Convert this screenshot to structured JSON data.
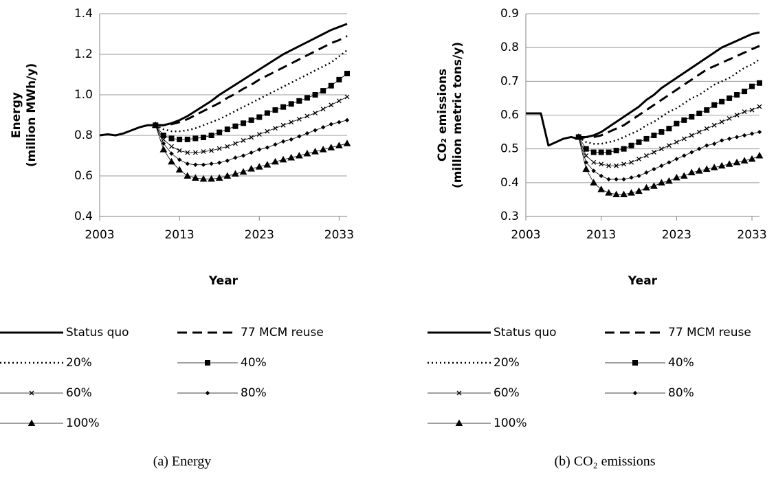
{
  "chart_data": [
    {
      "type": "line",
      "caption": "(a) Energy",
      "y_label": [
        "Energy",
        "(million MWh/y)"
      ],
      "x_label": "Year",
      "xlim": [
        2003,
        2034
      ],
      "xticks": [
        2003,
        2013,
        2023,
        2033
      ],
      "ylim": [
        0.4,
        1.4
      ],
      "yticks": [
        0.4,
        0.6,
        0.8,
        {
          "value": 1.0,
          "label": "1.0"
        },
        1.2,
        1.4
      ],
      "grid": true,
      "legend": "bottom",
      "x": [
        2003,
        2004,
        2005,
        2006,
        2007,
        2008,
        2009,
        2010,
        2011,
        2012,
        2013,
        2014,
        2015,
        2016,
        2017,
        2018,
        2019,
        2020,
        2021,
        2022,
        2023,
        2024,
        2025,
        2026,
        2027,
        2028,
        2029,
        2030,
        2031,
        2032,
        2033,
        2034
      ],
      "series": [
        {
          "name": "Status quo",
          "color": "#000000",
          "line_style": "solid",
          "marker": "none",
          "values": [
            0.8,
            0.805,
            0.8,
            0.81,
            0.825,
            0.84,
            0.85,
            0.85,
            0.85,
            0.86,
            0.875,
            0.895,
            0.92,
            0.945,
            0.97,
            1.0,
            1.025,
            1.05,
            1.075,
            1.1,
            1.125,
            1.15,
            1.175,
            1.2,
            1.22,
            1.24,
            1.26,
            1.28,
            1.3,
            1.32,
            1.335,
            1.35
          ]
        },
        {
          "name": "77 MCM reuse",
          "color": "#000000",
          "line_style": "dashed",
          "marker": "none",
          "values": [
            null,
            null,
            null,
            null,
            null,
            null,
            null,
            0.85,
            0.85,
            0.855,
            0.865,
            0.88,
            0.9,
            0.92,
            0.94,
            0.96,
            0.985,
            1.005,
            1.03,
            1.05,
            1.075,
            1.095,
            1.115,
            1.135,
            1.155,
            1.175,
            1.195,
            1.215,
            1.235,
            1.255,
            1.27,
            1.29
          ]
        },
        {
          "name": "20%",
          "color": "#000000",
          "line_style": "dotted",
          "marker": "none",
          "values": [
            null,
            null,
            null,
            null,
            null,
            null,
            null,
            0.85,
            0.83,
            0.82,
            0.82,
            0.825,
            0.835,
            0.85,
            0.865,
            0.88,
            0.9,
            0.92,
            0.94,
            0.96,
            0.98,
            1.0,
            1.02,
            1.04,
            1.06,
            1.08,
            1.1,
            1.12,
            1.14,
            1.16,
            1.19,
            1.22
          ]
        },
        {
          "name": "40%",
          "color": "#000000",
          "line_style": "thin",
          "marker": "square",
          "values": [
            null,
            null,
            null,
            null,
            null,
            null,
            null,
            0.85,
            0.8,
            0.785,
            0.78,
            0.78,
            0.785,
            0.79,
            0.8,
            0.815,
            0.83,
            0.845,
            0.86,
            0.875,
            0.89,
            0.91,
            0.925,
            0.94,
            0.955,
            0.97,
            0.985,
            1.0,
            1.02,
            1.045,
            1.075,
            1.105
          ]
        },
        {
          "name": "60%",
          "color": "#000000",
          "line_style": "thin",
          "marker": "x",
          "values": [
            null,
            null,
            null,
            null,
            null,
            null,
            null,
            0.85,
            0.78,
            0.745,
            0.725,
            0.715,
            0.715,
            0.72,
            0.725,
            0.735,
            0.745,
            0.76,
            0.775,
            0.79,
            0.805,
            0.82,
            0.835,
            0.85,
            0.865,
            0.88,
            0.895,
            0.91,
            0.93,
            0.95,
            0.97,
            0.99
          ]
        },
        {
          "name": "80%",
          "color": "#000000",
          "line_style": "thin",
          "marker": "diamond",
          "values": [
            null,
            null,
            null,
            null,
            null,
            null,
            null,
            0.85,
            0.76,
            0.71,
            0.68,
            0.66,
            0.655,
            0.655,
            0.66,
            0.665,
            0.675,
            0.69,
            0.7,
            0.715,
            0.73,
            0.74,
            0.755,
            0.77,
            0.78,
            0.795,
            0.81,
            0.825,
            0.84,
            0.855,
            0.865,
            0.875
          ]
        },
        {
          "name": "100%",
          "color": "#000000",
          "line_style": "thin",
          "marker": "triangle",
          "values": [
            null,
            null,
            null,
            null,
            null,
            null,
            null,
            0.85,
            0.73,
            0.67,
            0.63,
            0.6,
            0.59,
            0.585,
            0.585,
            0.59,
            0.6,
            0.61,
            0.62,
            0.635,
            0.645,
            0.655,
            0.67,
            0.68,
            0.69,
            0.7,
            0.71,
            0.72,
            0.73,
            0.74,
            0.75,
            0.76
          ]
        }
      ]
    },
    {
      "type": "line",
      "caption": "(b) CO₂ emissions",
      "y_label": [
        "CO₂ emissions",
        "(million metric tons/y)"
      ],
      "x_label": "Year",
      "xlim": [
        2003,
        2034
      ],
      "xticks": [
        2003,
        2013,
        2023,
        2033
      ],
      "ylim": [
        0.3,
        0.9
      ],
      "yticks": [
        0.3,
        0.4,
        0.5,
        0.6,
        0.7,
        0.8,
        0.9
      ],
      "grid": true,
      "legend": "bottom",
      "x": [
        2003,
        2004,
        2005,
        2006,
        2007,
        2008,
        2009,
        2010,
        2011,
        2012,
        2013,
        2014,
        2015,
        2016,
        2017,
        2018,
        2019,
        2020,
        2021,
        2022,
        2023,
        2024,
        2025,
        2026,
        2027,
        2028,
        2029,
        2030,
        2031,
        2032,
        2033,
        2034
      ],
      "series": [
        {
          "name": "Status quo",
          "color": "#000000",
          "line_style": "solid",
          "marker": "none",
          "values": [
            0.605,
            0.605,
            0.605,
            0.51,
            0.52,
            0.53,
            0.535,
            0.53,
            0.535,
            0.54,
            0.55,
            0.565,
            0.58,
            0.595,
            0.61,
            0.625,
            0.645,
            0.66,
            0.68,
            0.695,
            0.71,
            0.725,
            0.74,
            0.755,
            0.77,
            0.785,
            0.8,
            0.81,
            0.82,
            0.83,
            0.84,
            0.845
          ]
        },
        {
          "name": "77 MCM reuse",
          "color": "#000000",
          "line_style": "dashed",
          "marker": "none",
          "values": [
            null,
            null,
            null,
            null,
            null,
            null,
            null,
            0.535,
            0.535,
            0.535,
            0.54,
            0.55,
            0.56,
            0.57,
            0.585,
            0.6,
            0.615,
            0.63,
            0.645,
            0.66,
            0.675,
            0.69,
            0.705,
            0.72,
            0.735,
            0.745,
            0.755,
            0.765,
            0.775,
            0.785,
            0.795,
            0.805
          ]
        },
        {
          "name": "20%",
          "color": "#000000",
          "line_style": "dotted",
          "marker": "none",
          "values": [
            null,
            null,
            null,
            null,
            null,
            null,
            null,
            0.535,
            0.52,
            0.515,
            0.515,
            0.52,
            0.525,
            0.535,
            0.545,
            0.555,
            0.57,
            0.58,
            0.595,
            0.61,
            0.62,
            0.635,
            0.65,
            0.66,
            0.675,
            0.69,
            0.7,
            0.71,
            0.725,
            0.74,
            0.75,
            0.765
          ]
        },
        {
          "name": "40%",
          "color": "#000000",
          "line_style": "thin",
          "marker": "square",
          "values": [
            null,
            null,
            null,
            null,
            null,
            null,
            null,
            0.535,
            0.5,
            0.49,
            0.49,
            0.49,
            0.495,
            0.5,
            0.51,
            0.52,
            0.53,
            0.54,
            0.55,
            0.56,
            0.575,
            0.585,
            0.595,
            0.605,
            0.615,
            0.63,
            0.64,
            0.65,
            0.66,
            0.67,
            0.685,
            0.695
          ]
        },
        {
          "name": "60%",
          "color": "#000000",
          "line_style": "thin",
          "marker": "x",
          "values": [
            null,
            null,
            null,
            null,
            null,
            null,
            null,
            0.535,
            0.48,
            0.46,
            0.455,
            0.45,
            0.45,
            0.455,
            0.46,
            0.47,
            0.48,
            0.49,
            0.5,
            0.51,
            0.52,
            0.53,
            0.54,
            0.55,
            0.56,
            0.57,
            0.58,
            0.59,
            0.6,
            0.61,
            0.615,
            0.625
          ]
        },
        {
          "name": "80%",
          "color": "#000000",
          "line_style": "thin",
          "marker": "diamond",
          "values": [
            null,
            null,
            null,
            null,
            null,
            null,
            null,
            0.535,
            0.46,
            0.435,
            0.42,
            0.41,
            0.41,
            0.41,
            0.415,
            0.42,
            0.43,
            0.44,
            0.45,
            0.46,
            0.47,
            0.48,
            0.49,
            0.5,
            0.51,
            0.515,
            0.525,
            0.53,
            0.535,
            0.54,
            0.545,
            0.55
          ]
        },
        {
          "name": "100%",
          "color": "#000000",
          "line_style": "thin",
          "marker": "triangle",
          "values": [
            null,
            null,
            null,
            null,
            null,
            null,
            null,
            0.535,
            0.44,
            0.4,
            0.38,
            0.37,
            0.365,
            0.365,
            0.37,
            0.375,
            0.385,
            0.39,
            0.4,
            0.405,
            0.415,
            0.42,
            0.43,
            0.435,
            0.44,
            0.445,
            0.45,
            0.455,
            0.46,
            0.465,
            0.47,
            0.48
          ]
        }
      ]
    }
  ]
}
